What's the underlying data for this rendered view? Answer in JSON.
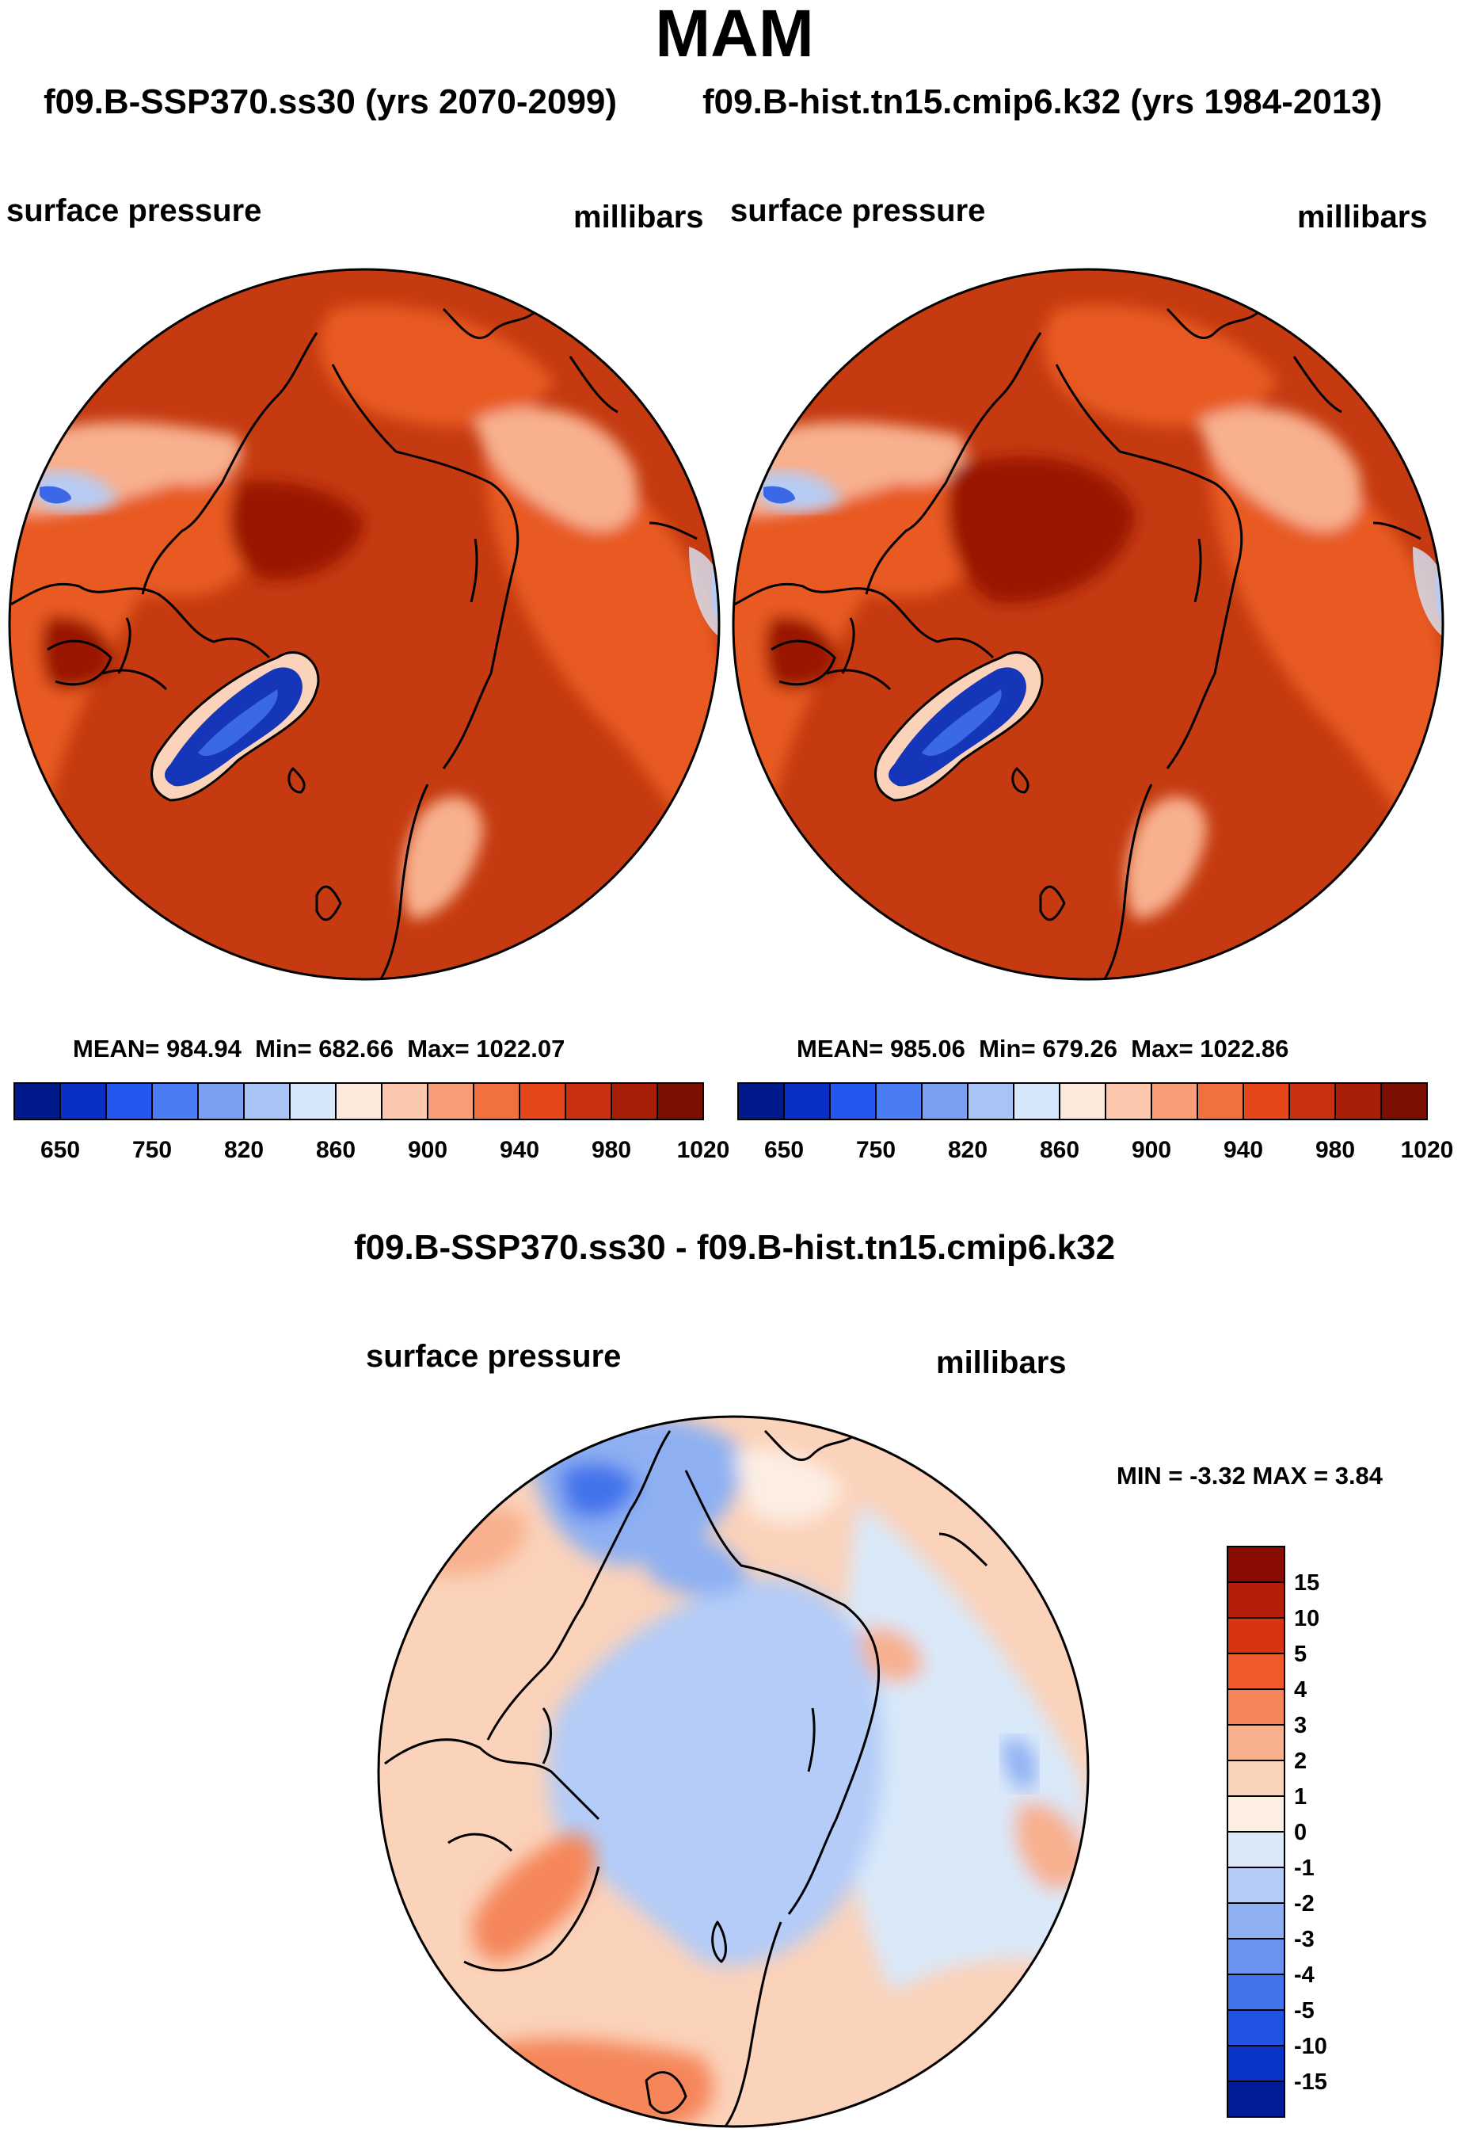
{
  "header": {
    "title": "MAM",
    "run_a": "f09.B-SSP370.ss30 (yrs 2070-2099)",
    "run_b": "f09.B-hist.tn15.cmip6.k32 (yrs 1984-2013)",
    "diff_title": "f09.B-SSP370.ss30 - f09.B-hist.tn15.cmip6.k32"
  },
  "chart_data": [
    {
      "type": "heatmap",
      "name": "run_a",
      "left_label": "surface pressure",
      "right_label": "millibars",
      "stats": {
        "mean_label": "MEAN=",
        "mean": "984.94",
        "min_label": "Min=",
        "min": "682.66",
        "max_label": "Max=",
        "max": "1022.07"
      },
      "colorbar": {
        "tick_labels": [
          "650",
          "750",
          "820",
          "860",
          "900",
          "940",
          "980",
          "1020"
        ],
        "colors": [
          "#001a8c",
          "#0a2fc4",
          "#2457ee",
          "#4a7cf4",
          "#7aa0f2",
          "#a8c4f4",
          "#d6e6fb",
          "#fde9dc",
          "#fbc8ad",
          "#f79e78",
          "#f2703f",
          "#e5471a",
          "#c9300f",
          "#a81d06",
          "#7d0e02"
        ]
      }
    },
    {
      "type": "heatmap",
      "name": "run_b",
      "left_label": "surface pressure",
      "right_label": "millibars",
      "stats": {
        "mean_label": "MEAN=",
        "mean": "985.06",
        "min_label": "Min=",
        "min": "679.26",
        "max_label": "Max=",
        "max": "1022.86"
      },
      "colorbar": {
        "tick_labels": [
          "650",
          "750",
          "820",
          "860",
          "900",
          "940",
          "980",
          "1020"
        ],
        "colors": [
          "#001a8c",
          "#0a2fc4",
          "#2457ee",
          "#4a7cf4",
          "#7aa0f2",
          "#a8c4f4",
          "#d6e6fb",
          "#fde9dc",
          "#fbc8ad",
          "#f79e78",
          "#f2703f",
          "#e5471a",
          "#c9300f",
          "#a81d06",
          "#7d0e02"
        ]
      }
    },
    {
      "type": "heatmap",
      "name": "difference",
      "left_label": "surface pressure",
      "right_label": "millibars",
      "stats": {
        "min_label": "MIN =",
        "min": "-3.32",
        "max_label": "MAX =",
        "max": "3.84"
      },
      "colorbar": {
        "tick_labels": [
          "15",
          "10",
          "5",
          "4",
          "3",
          "2",
          "1",
          "0",
          "-1",
          "-2",
          "-3",
          "-4",
          "-5",
          "-10",
          "-15"
        ],
        "colors": [
          "#8a0d04",
          "#b51f08",
          "#d93412",
          "#ef5a2a",
          "#f5865a",
          "#f8b08e",
          "#fbd2ba",
          "#fdeee4",
          "#d9e9fa",
          "#b4ccf7",
          "#8eb0f2",
          "#6a92ee",
          "#4373ec",
          "#2153e2",
          "#0a34c8",
          "#001c96"
        ]
      }
    }
  ],
  "colors": {
    "deep_red": "#9a1504",
    "red": "#c53a10",
    "orange": "#e85a22",
    "light_orange": "#f48b5a",
    "pale": "#fde3d4",
    "light_blue": "#b6ccf4",
    "blue": "#3a68e6",
    "dark_blue": "#1536b8",
    "land": "#000000"
  }
}
